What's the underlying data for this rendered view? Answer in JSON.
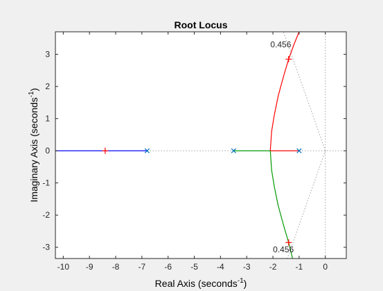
{
  "chart_data": {
    "type": "line",
    "title": "Root Locus",
    "xlabel": {
      "text": "Real Axis (seconds",
      "sup": "-1",
      "suffix": ")"
    },
    "ylabel": {
      "text": "Imaginary Axis (seconds",
      "sup": "-1",
      "suffix": ")"
    },
    "xlim": [
      -10.3,
      0.8
    ],
    "ylim": [
      -3.35,
      3.7
    ],
    "xticks": [
      -10,
      -9,
      -8,
      -7,
      -6,
      -5,
      -4,
      -3,
      -2,
      -1,
      0
    ],
    "yticks": [
      -3,
      -2,
      -1,
      0,
      1,
      2,
      3
    ],
    "grid": false,
    "legend": "none",
    "colors": {
      "branch_blue": "#0000ff",
      "branch_green": "#009900",
      "branch_red": "#ff0000",
      "pole_marker": "#0072bd",
      "gain_marker": "#ff0000",
      "damping_line": "#a0a0a0"
    },
    "poles": [
      [
        -6.8,
        0
      ],
      [
        -3.5,
        0
      ],
      [
        -1.0,
        0
      ]
    ],
    "selected_points": [
      [
        -8.4,
        0
      ],
      [
        -1.4,
        2.85
      ],
      [
        -1.4,
        -2.85
      ]
    ],
    "series": [
      {
        "x": [
          -10.3,
          -6.8
        ],
        "y": [
          0,
          0
        ],
        "color": "#0000ff"
      },
      {
        "x": [
          -3.5,
          -2.1
        ],
        "y": [
          0,
          0
        ],
        "color": "#009900"
      },
      {
        "x": [
          -1.0,
          -2.1
        ],
        "y": [
          0,
          0
        ],
        "color": "#ff0000"
      },
      {
        "x": [
          -2.1,
          -2.05,
          -1.95,
          -1.8,
          -1.6,
          -1.4,
          -1.2,
          -1.0
        ],
        "y": [
          0,
          0.6,
          1.1,
          1.7,
          2.3,
          2.85,
          3.3,
          3.7
        ],
        "color": "#ff0000"
      },
      {
        "x": [
          -2.1,
          -2.05,
          -1.95,
          -1.8,
          -1.6,
          -1.4,
          -1.25
        ],
        "y": [
          0,
          -0.6,
          -1.1,
          -1.7,
          -2.3,
          -2.85,
          -3.35
        ],
        "color": "#009900"
      }
    ],
    "dotted_segments": [
      {
        "x": [
          -6.8,
          -3.5
        ],
        "y": [
          0,
          0
        ]
      },
      {
        "x": [
          -1.0,
          0.8
        ],
        "y": [
          0,
          0
        ]
      },
      {
        "x": [
          0,
          0
        ],
        "y": [
          -3.35,
          3.7
        ]
      },
      {
        "x": [
          0,
          -1.6
        ],
        "y": [
          0,
          3.7
        ]
      },
      {
        "x": [
          0,
          -1.45
        ],
        "y": [
          0,
          -3.35
        ]
      }
    ],
    "annotations": [
      {
        "text": "0.456",
        "x": -1.7,
        "y": 3.3
      },
      {
        "text": "0.456",
        "x": -1.6,
        "y": -3.07
      }
    ]
  }
}
